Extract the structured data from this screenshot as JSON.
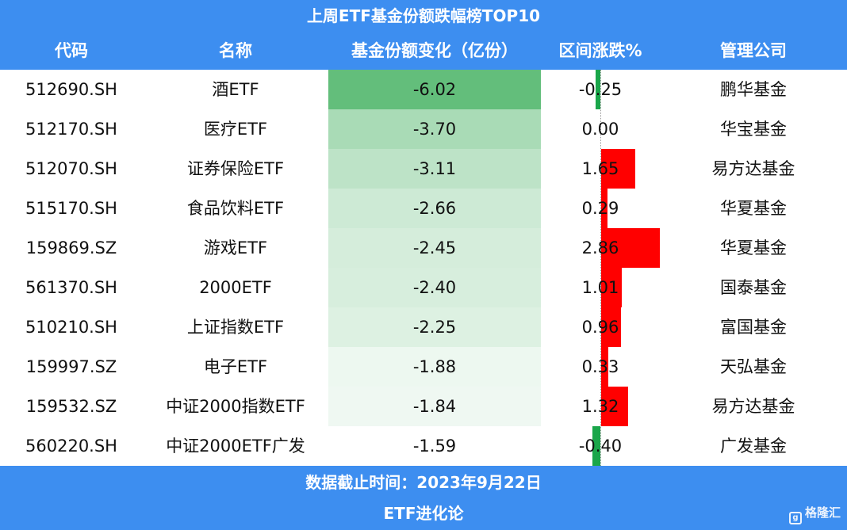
{
  "title": "上周ETF基金份额跌幅榜TOP10",
  "headers": {
    "code": "代码",
    "name": "名称",
    "share_change": "基金份额变化（亿份）",
    "range_change": "区间涨跌%",
    "manager": "管理公司"
  },
  "rows": [
    {
      "code": "512690.SH",
      "name": "酒ETF",
      "share_change": "-6.02",
      "range_change": "-0.25",
      "manager": "鹏华基金"
    },
    {
      "code": "512170.SH",
      "name": "医疗ETF",
      "share_change": "-3.70",
      "range_change": "0.00",
      "manager": "华宝基金"
    },
    {
      "code": "512070.SH",
      "name": "证券保险ETF",
      "share_change": "-3.11",
      "range_change": "1.65",
      "manager": "易方达基金"
    },
    {
      "code": "515170.SH",
      "name": "食品饮料ETF",
      "share_change": "-2.66",
      "range_change": "0.29",
      "manager": "华夏基金"
    },
    {
      "code": "159869.SZ",
      "name": "游戏ETF",
      "share_change": "-2.45",
      "range_change": "2.86",
      "manager": "华夏基金"
    },
    {
      "code": "561370.SH",
      "name": "2000ETF",
      "share_change": "-2.40",
      "range_change": "1.01",
      "manager": "国泰基金"
    },
    {
      "code": "510210.SH",
      "name": "上证指数ETF",
      "share_change": "-2.25",
      "range_change": "0.96",
      "manager": "富国基金"
    },
    {
      "code": "159997.SZ",
      "name": "电子ETF",
      "share_change": "-1.88",
      "range_change": "0.33",
      "manager": "天弘基金"
    },
    {
      "code": "159532.SZ",
      "name": "中证2000指数ETF",
      "share_change": "-1.84",
      "range_change": "1.32",
      "manager": "易方达基金"
    },
    {
      "code": "560220.SH",
      "name": "中证2000ETF广发",
      "share_change": "-1.59",
      "range_change": "-0.40",
      "manager": "广发基金"
    }
  ],
  "chart_data": {
    "type": "table",
    "columns": [
      "代码",
      "名称",
      "基金份额变化（亿份）",
      "区间涨跌%",
      "管理公司"
    ],
    "share_change_values": [
      -6.02,
      -3.7,
      -3.11,
      -2.66,
      -2.45,
      -2.4,
      -2.25,
      -1.88,
      -1.84,
      -1.59
    ],
    "range_change_values": [
      -0.25,
      0.0,
      1.65,
      0.29,
      2.86,
      1.01,
      0.96,
      0.33,
      1.32,
      -0.4
    ]
  },
  "footer": {
    "date": "数据截止时间：2023年9月22日",
    "brand": "ETF进化论"
  },
  "watermark": {
    "icon": "g",
    "text": "格隆汇"
  },
  "colors": {
    "header_bg": "#3d8ef0",
    "positive_bar": "#ff0000",
    "negative_bar": "#1aa64a",
    "heat_strong": "#63be7b",
    "heat_weak": "#ffffff"
  }
}
